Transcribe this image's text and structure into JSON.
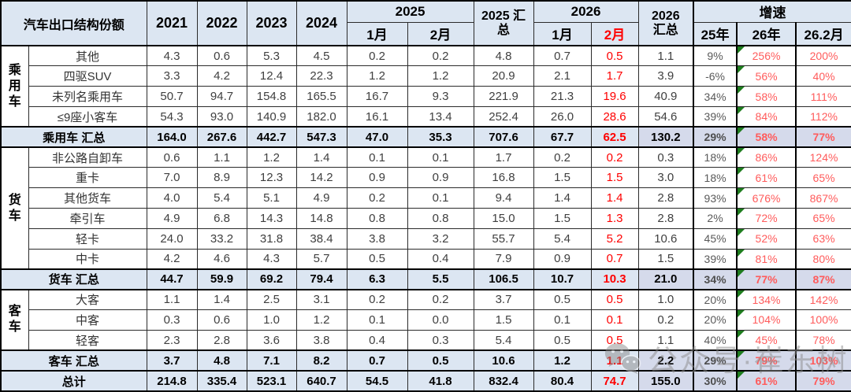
{
  "header": {
    "title": "汽车出口结构份额",
    "years": [
      "2021",
      "2022",
      "2023",
      "2024"
    ],
    "group_2025": "2025",
    "sum_2025": "2025 汇\n总",
    "group_2026": "2026",
    "sum_2026": "2026\n汇总",
    "growth": "增速",
    "sub": {
      "m1_2025": "1月",
      "m2_2025": "2月",
      "m1_2026": "1月",
      "m2_2026": "2月",
      "g25": "25年",
      "g26": "26年",
      "g262": "26.2月"
    }
  },
  "groups": [
    {
      "name": "乘用车",
      "start": 0,
      "span": 4
    },
    {
      "name": "货车",
      "start": 5,
      "span": 6
    },
    {
      "name": "客车",
      "start": 12,
      "span": 3
    }
  ],
  "rows": [
    {
      "label": "其他",
      "summary": false,
      "values": [
        "4.3",
        "0.6",
        "5.3",
        "4.5",
        "0.2",
        "0.2",
        "4.8",
        "0.7",
        "0.5",
        "1.1",
        "9%",
        "256%",
        "200%"
      ]
    },
    {
      "label": "四驱SUV",
      "summary": false,
      "values": [
        "3.3",
        "4.2",
        "12.4",
        "22.3",
        "1.2",
        "1.2",
        "20.9",
        "2.1",
        "1.7",
        "3.9",
        "-6%",
        "56%",
        "40%"
      ]
    },
    {
      "label": "未列名乘用车",
      "summary": false,
      "values": [
        "50.7",
        "94.7",
        "154.8",
        "165.5",
        "16.7",
        "9.3",
        "221.9",
        "21.3",
        "19.6",
        "40.9",
        "34%",
        "58%",
        "111%"
      ]
    },
    {
      "label": "≤9座小客车",
      "summary": false,
      "values": [
        "54.3",
        "93.0",
        "140.9",
        "182.0",
        "16.1",
        "13.4",
        "252.4",
        "26.0",
        "28.6",
        "54.6",
        "39%",
        "84%",
        "112%"
      ]
    },
    {
      "label": "乘用车 汇总",
      "summary": true,
      "values": [
        "164.0",
        "267.6",
        "442.7",
        "547.3",
        "47.0",
        "35.3",
        "707.6",
        "67.7",
        "62.5",
        "130.2",
        "29%",
        "58%",
        "77%"
      ]
    },
    {
      "label": "非公路自卸车",
      "summary": false,
      "values": [
        "0.6",
        "1.1",
        "1.2",
        "1.4",
        "0.1",
        "0.1",
        "1.7",
        "0.2",
        "0.2",
        "0.3",
        "18%",
        "86%",
        "124%"
      ]
    },
    {
      "label": "重卡",
      "summary": false,
      "values": [
        "7.0",
        "8.9",
        "12.3",
        "14.2",
        "0.9",
        "0.9",
        "16.8",
        "1.5",
        "1.5",
        "3.0",
        "18%",
        "61%",
        "65%"
      ]
    },
    {
      "label": "其他货车",
      "summary": false,
      "values": [
        "4.0",
        "5.4",
        "5.1",
        "4.9",
        "0.2",
        "0.1",
        "9.4",
        "1.4",
        "1.4",
        "2.8",
        "93%",
        "676%",
        "867%"
      ]
    },
    {
      "label": "牵引车",
      "summary": false,
      "values": [
        "4.9",
        "6.8",
        "14.3",
        "14.8",
        "0.8",
        "0.8",
        "15.0",
        "1.5",
        "1.3",
        "2.8",
        "2%",
        "72%",
        "65%"
      ]
    },
    {
      "label": "轻卡",
      "summary": false,
      "values": [
        "24.0",
        "33.2",
        "31.8",
        "38.4",
        "3.8",
        "3.2",
        "55.7",
        "5.4",
        "5.2",
        "10.6",
        "45%",
        "52%",
        "63%"
      ]
    },
    {
      "label": "中卡",
      "summary": false,
      "values": [
        "4.2",
        "4.6",
        "4.3",
        "5.7",
        "0.5",
        "0.4",
        "7.9",
        "0.9",
        "0.7",
        "1.5",
        "39%",
        "81%",
        "80%"
      ]
    },
    {
      "label": "货车 汇总",
      "summary": true,
      "values": [
        "44.7",
        "59.9",
        "69.2",
        "79.4",
        "6.3",
        "5.5",
        "106.5",
        "10.7",
        "10.3",
        "21.0",
        "34%",
        "77%",
        "87%"
      ]
    },
    {
      "label": "大客",
      "summary": false,
      "values": [
        "1.1",
        "1.4",
        "2.5",
        "3.1",
        "0.2",
        "0.2",
        "3.7",
        "0.5",
        "0.5",
        "1.0",
        "20%",
        "134%",
        "142%"
      ]
    },
    {
      "label": "中客",
      "summary": false,
      "values": [
        "0.3",
        "0.6",
        "1.0",
        "1.2",
        "0.1",
        "0.0",
        "1.5",
        "0.1",
        "0.1",
        "0.2",
        "20%",
        "104%",
        "100%"
      ]
    },
    {
      "label": "轻客",
      "summary": false,
      "values": [
        "2.3",
        "2.8",
        "3.6",
        "3.8",
        "0.4",
        "0.3",
        "5.4",
        "0.5",
        "0.5",
        "1.1",
        "40%",
        "45%",
        "78%"
      ]
    },
    {
      "label": "客车 汇总",
      "summary": true,
      "values": [
        "3.7",
        "4.8",
        "7.1",
        "8.2",
        "0.7",
        "0.5",
        "10.6",
        "1.2",
        "1.1",
        "2.2",
        "29%",
        "79%",
        "103%"
      ]
    },
    {
      "label": "总计",
      "summary": true,
      "values": [
        "214.8",
        "335.4",
        "523.1",
        "640.7",
        "54.5",
        "41.8",
        "832.4",
        "80.4",
        "74.7",
        "155.0",
        "30%",
        "61%",
        "79%"
      ]
    }
  ],
  "colors": {
    "header_bg": "#dce6f2",
    "summary_bg": "#dce6f2",
    "summary_growth_bg": "#d5daeb",
    "red_value": "#fe0000",
    "growth_red": "#ff5b5b",
    "flag_green": "#1e7d1e"
  },
  "watermark": {
    "text": "公众号·崔东树",
    "icon": "wechat-icon"
  }
}
